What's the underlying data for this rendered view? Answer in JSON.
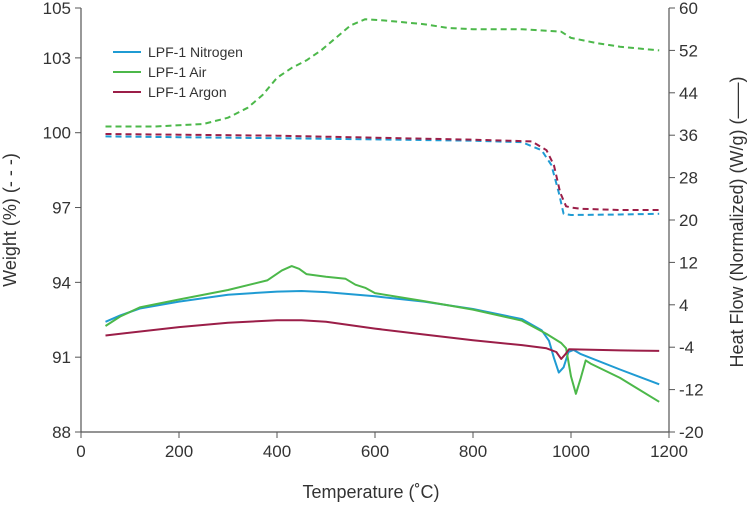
{
  "chart_data": {
    "type": "line",
    "xlabel": "Temperature (˚C)",
    "ylabel_left": "Weight (%) (- - -)",
    "ylabel_right": "Heat Flow (Normalized) (W/g) (——)",
    "xlim": [
      0,
      1200
    ],
    "ylim_left": [
      88,
      105
    ],
    "ylim_right": [
      -20,
      60
    ],
    "x_ticks": [
      "0",
      "200",
      "400",
      "600",
      "800",
      "1000",
      "1200"
    ],
    "y_left_ticks": [
      "88",
      "91",
      "94",
      "97",
      "100",
      "103",
      "105"
    ],
    "y_right_ticks": [
      "-20",
      "-12",
      "-4",
      "4",
      "12",
      "20",
      "28",
      "36",
      "44",
      "52",
      "60"
    ],
    "grid": false,
    "legend_position": "top-left",
    "colors": {
      "nitrogen": "#1f9bd3",
      "air": "#4cb84a",
      "argon": "#9b1e48",
      "axis": "#555555"
    },
    "series": [
      {
        "name": "LPF-1 Nitrogen",
        "key": "nitrogen",
        "weight": [
          [
            50,
            99.85
          ],
          [
            200,
            99.82
          ],
          [
            400,
            99.78
          ],
          [
            600,
            99.73
          ],
          [
            800,
            99.68
          ],
          [
            900,
            99.62
          ],
          [
            940,
            99.3
          ],
          [
            960,
            98.7
          ],
          [
            975,
            97.6
          ],
          [
            985,
            96.75
          ],
          [
            1000,
            96.7
          ],
          [
            1100,
            96.72
          ],
          [
            1180,
            96.75
          ]
        ],
        "heat_flow": [
          [
            50,
            0.8
          ],
          [
            80,
            2.0
          ],
          [
            120,
            3.3
          ],
          [
            200,
            4.6
          ],
          [
            300,
            5.9
          ],
          [
            400,
            6.5
          ],
          [
            450,
            6.6
          ],
          [
            500,
            6.4
          ],
          [
            600,
            5.6
          ],
          [
            700,
            4.6
          ],
          [
            800,
            3.2
          ],
          [
            900,
            1.3
          ],
          [
            940,
            -0.8
          ],
          [
            955,
            -2.8
          ],
          [
            965,
            -6.0
          ],
          [
            975,
            -8.8
          ],
          [
            985,
            -7.8
          ],
          [
            995,
            -4.9
          ],
          [
            1005,
            -4.5
          ],
          [
            1020,
            -5.3
          ],
          [
            1100,
            -8.2
          ],
          [
            1180,
            -11.0
          ]
        ]
      },
      {
        "name": "LPF-1 Air",
        "key": "air",
        "weight": [
          [
            50,
            100.25
          ],
          [
            150,
            100.25
          ],
          [
            250,
            100.35
          ],
          [
            300,
            100.6
          ],
          [
            340,
            101.0
          ],
          [
            370,
            101.5
          ],
          [
            400,
            102.2
          ],
          [
            430,
            102.6
          ],
          [
            460,
            102.9
          ],
          [
            490,
            103.3
          ],
          [
            520,
            103.8
          ],
          [
            550,
            104.3
          ],
          [
            580,
            104.55
          ],
          [
            620,
            104.5
          ],
          [
            700,
            104.35
          ],
          [
            750,
            104.2
          ],
          [
            800,
            104.15
          ],
          [
            900,
            104.15
          ],
          [
            980,
            104.05
          ],
          [
            1000,
            103.8
          ],
          [
            1050,
            103.6
          ],
          [
            1100,
            103.45
          ],
          [
            1180,
            103.3
          ]
        ],
        "heat_flow": [
          [
            50,
            0.0
          ],
          [
            80,
            1.8
          ],
          [
            120,
            3.5
          ],
          [
            200,
            5.0
          ],
          [
            300,
            6.8
          ],
          [
            380,
            8.6
          ],
          [
            410,
            10.5
          ],
          [
            430,
            11.3
          ],
          [
            445,
            10.8
          ],
          [
            460,
            9.8
          ],
          [
            500,
            9.3
          ],
          [
            540,
            8.9
          ],
          [
            560,
            7.8
          ],
          [
            580,
            7.2
          ],
          [
            600,
            6.2
          ],
          [
            700,
            4.7
          ],
          [
            800,
            3.1
          ],
          [
            900,
            1.0
          ],
          [
            950,
            -1.5
          ],
          [
            980,
            -3.2
          ],
          [
            990,
            -4.2
          ],
          [
            1000,
            -9.5
          ],
          [
            1010,
            -12.8
          ],
          [
            1020,
            -9.8
          ],
          [
            1030,
            -6.5
          ],
          [
            1040,
            -7.1
          ],
          [
            1100,
            -9.8
          ],
          [
            1180,
            -14.3
          ]
        ]
      },
      {
        "name": "LPF-1 Argon",
        "key": "argon",
        "weight": [
          [
            50,
            99.95
          ],
          [
            200,
            99.92
          ],
          [
            400,
            99.88
          ],
          [
            600,
            99.8
          ],
          [
            800,
            99.72
          ],
          [
            920,
            99.65
          ],
          [
            950,
            99.3
          ],
          [
            965,
            98.7
          ],
          [
            978,
            97.6
          ],
          [
            990,
            97.05
          ],
          [
            1000,
            97.0
          ],
          [
            1020,
            96.95
          ],
          [
            1100,
            96.9
          ],
          [
            1180,
            96.9
          ]
        ],
        "heat_flow": [
          [
            50,
            -1.8
          ],
          [
            200,
            -0.2
          ],
          [
            300,
            0.6
          ],
          [
            400,
            1.1
          ],
          [
            450,
            1.1
          ],
          [
            500,
            0.8
          ],
          [
            600,
            -0.5
          ],
          [
            700,
            -1.6
          ],
          [
            800,
            -2.7
          ],
          [
            900,
            -3.6
          ],
          [
            950,
            -4.2
          ],
          [
            970,
            -4.9
          ],
          [
            980,
            -6.2
          ],
          [
            988,
            -5.4
          ],
          [
            996,
            -4.4
          ],
          [
            1100,
            -4.6
          ],
          [
            1180,
            -4.7
          ]
        ]
      }
    ]
  }
}
